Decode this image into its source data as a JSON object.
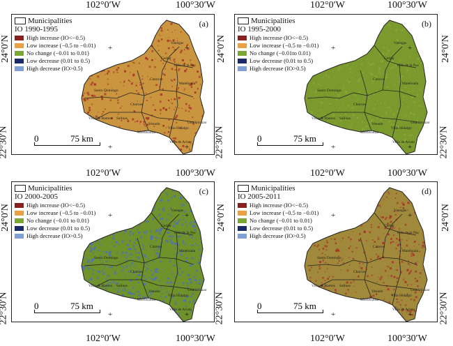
{
  "coords": {
    "top_left": "102°0′W",
    "top_right": "100°30′W",
    "mid_left": "102°0′W",
    "mid_right": "100°30′W",
    "bottom_left": "102°0′W",
    "bottom_right": "100°30′W",
    "lat_top_left": "24°0′N",
    "lat_bottom_left": "22°30′N",
    "lat_top_mid": "24°0′N",
    "lat_bottom_mid": "22°30′N",
    "lat_top_right": "24°0′N",
    "lat_bottom_right": "22°30′N",
    "lat_top_left2": "24°0′N",
    "lat_bottom_left2": "22°30′N",
    "lat_top_right2": "24°0′N",
    "lat_bottom_right2": "22°30′N"
  },
  "legend_header": "Municipalities",
  "panels": [
    {
      "label": "(a)",
      "period": "IO 1990-1995",
      "items": [
        "High increase (IO<−0.5)",
        "Low increase (−0.5 to −0.01)",
        "No change (−0.01 to 0.01)",
        "Low decrease (0.01 to 0.5)",
        "High decrease (IO>0.5)"
      ],
      "base_color": "#c9953f",
      "speckle_color": "#a8322a"
    },
    {
      "label": "(b)",
      "period": "IO 1995-2000",
      "items": [
        "High increase (IO<−0.5)",
        "Low increase (−0.5 to −0.01)",
        "No change (−0.01to 0.01)",
        "Low decrease (0.01 to 0.5)",
        "High decrease (IO>0.5)"
      ],
      "base_color": "#7a9a2e",
      "speckle_color": "#8aa838"
    },
    {
      "label": "(c)",
      "period": "IO 2000-2005",
      "items": [
        "High increase (IO<−0.5)",
        "Low increase (−0.5 to −0.01)",
        "No change (−0.01 to 0.01)",
        "Low decrease (0.01 to 0.5)",
        "High decrease (IO>0.5)"
      ],
      "base_color": "#6f922a",
      "speckle_color": "#4d6fc0"
    },
    {
      "label": "(d)",
      "period": "IO 2005-2011",
      "items": [
        "High increase (IO<−0.5)",
        "Low increase (−0.5 to −0.01)",
        "No change (−0.01 to 0.01)",
        "Low decrease (0.01 to 0.5)",
        "High decrease (IO>0.5)"
      ],
      "base_color": "#a0893a",
      "speckle_color": "#a8322a"
    }
  ],
  "legend_colors": [
    "#8b1e1e",
    "#e8a040",
    "#7aa632",
    "#1a2a6a",
    "#7ea0d8"
  ],
  "scale": {
    "zero": "0",
    "distance": "75 km"
  },
  "municipalities": [
    "Santo Domingo",
    "Catorce",
    "Charcas",
    "Villa de Ramos",
    "Venado",
    "Moctezuma",
    "Villa Hidalgo",
    "Cedral",
    "Vanegas",
    "Guadalcázar",
    "Matehuala",
    "Villa de la Paz",
    "Salinas",
    "Villa de Arista"
  ]
}
